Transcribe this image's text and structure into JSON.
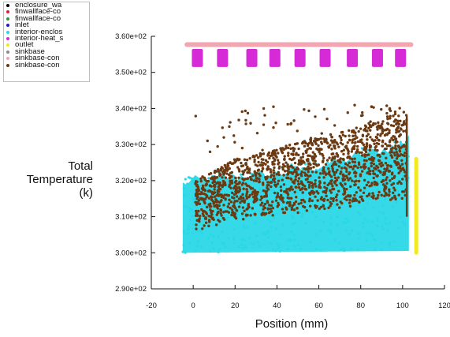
{
  "legend": [
    {
      "label": "enclosure_wa",
      "color": "#000000"
    },
    {
      "label": "finwallface-co",
      "color": "#e0202e"
    },
    {
      "label": "finwallface-co",
      "color": "#2c9b3a"
    },
    {
      "label": "inlet",
      "color": "#1b1bd0"
    },
    {
      "label": "interior-enclos",
      "color": "#2ad7e6"
    },
    {
      "label": "interior-heat_s",
      "color": "#d62ad6"
    },
    {
      "label": "outlet",
      "color": "#f2ea1e"
    },
    {
      "label": "sinkbase",
      "color": "#8a8a8a"
    },
    {
      "label": "sinkbase-con",
      "color": "#f2a6b2"
    },
    {
      "label": "sinkbase-con",
      "color": "#6b3a12"
    }
  ],
  "axis": {
    "ylabel_lines": [
      "Total",
      "Temperature",
      "(k)"
    ],
    "xlabel": "Position (mm)"
  },
  "chart_data": {
    "type": "scatter",
    "title": "",
    "xlabel": "Position (mm)",
    "ylabel": "Total Temperature (k)",
    "xlim": [
      -20,
      120
    ],
    "ylim": [
      290,
      360
    ],
    "x_ticks": [
      -20,
      0,
      20,
      40,
      60,
      80,
      100,
      120
    ],
    "x_tick_labels": [
      "-20",
      "0",
      "20",
      "40",
      "60",
      "80",
      "100",
      "120"
    ],
    "y_ticks": [
      290,
      300,
      310,
      320,
      330,
      340,
      350,
      360
    ],
    "y_tick_labels": [
      "2.90e+02",
      "3.00e+02",
      "3.10e+02",
      "3.20e+02",
      "3.30e+02",
      "3.40e+02",
      "3.50e+02",
      "3.60e+02"
    ],
    "grid": false,
    "legend_position": "top-left",
    "series": [
      {
        "name": "interior-enclos",
        "color": "#2ad7e6",
        "kind": "band",
        "x_range": [
          -5,
          103
        ],
        "lower": [
          [
            -5,
            300
          ],
          [
            103,
            300.5
          ]
        ],
        "upper": [
          [
            -5,
            319
          ],
          [
            0,
            320
          ],
          [
            20,
            321
          ],
          [
            40,
            322
          ],
          [
            60,
            324
          ],
          [
            80,
            327
          ],
          [
            100,
            330
          ],
          [
            103,
            333
          ]
        ]
      },
      {
        "name": "sinkbase-con",
        "color": "#6b3a12",
        "kind": "noisy_band",
        "x_range": [
          1,
          102
        ],
        "lower": [
          [
            1,
            306
          ],
          [
            20,
            309
          ],
          [
            40,
            310
          ],
          [
            60,
            312
          ],
          [
            80,
            313
          ],
          [
            102,
            315
          ]
        ],
        "upper": [
          [
            1,
            320
          ],
          [
            20,
            326
          ],
          [
            40,
            329
          ],
          [
            60,
            332
          ],
          [
            80,
            335
          ],
          [
            102,
            338
          ]
        ],
        "peak": 341
      },
      {
        "name": "outlet",
        "color": "#f2ea1e",
        "kind": "segment",
        "points": [
          [
            106.5,
            300
          ],
          [
            106.5,
            326
          ]
        ]
      },
      {
        "name": "sinkbase-con",
        "color": "#f2a6b2",
        "kind": "segment",
        "points": [
          [
            -3,
            357.7
          ],
          [
            104,
            357.7
          ]
        ]
      },
      {
        "name": "interior-heat_s",
        "color": "#d62ad6",
        "kind": "fins",
        "x": [
          2,
          14,
          28,
          39,
          51,
          63,
          76,
          88,
          99
        ],
        "y_range": [
          351.5,
          356.5
        ]
      }
    ]
  }
}
